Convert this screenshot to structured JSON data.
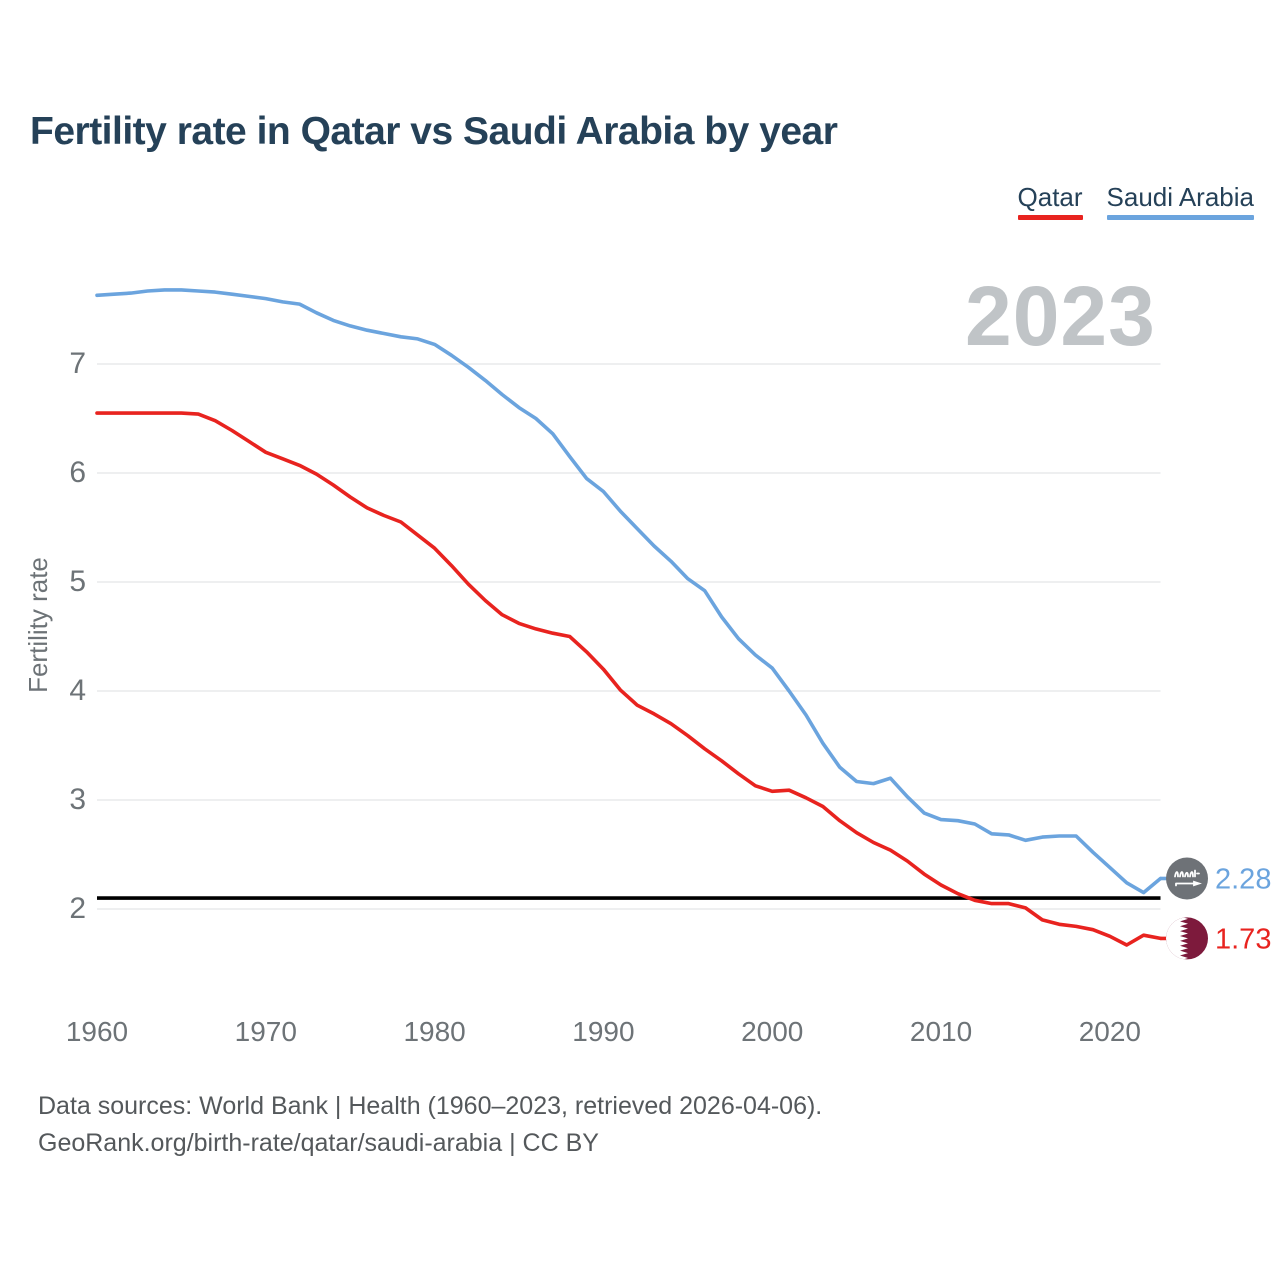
{
  "header": {
    "title": "Fertility rate in Qatar vs Saudi Arabia by year"
  },
  "legend": {
    "items": [
      {
        "label": "Qatar",
        "color": "#e8231f"
      },
      {
        "label": "Saudi Arabia",
        "color": "#6ba4de"
      }
    ]
  },
  "watermark": "2023",
  "axes": {
    "y_label": "Fertility rate",
    "y_ticks": [
      2,
      3,
      4,
      5,
      6,
      7
    ],
    "x_ticks": [
      1960,
      1970,
      1980,
      1990,
      2000,
      2010,
      2020
    ],
    "tick_color": "#6d7377",
    "gridline_color": "#e8eaeb"
  },
  "reference_line": {
    "value": 2.1,
    "color": "#000000"
  },
  "end_labels": [
    {
      "series": "Saudi Arabia",
      "text": "2.28",
      "icon": "saudi-arabia-flag",
      "color": "#6ba4de"
    },
    {
      "series": "Qatar",
      "text": "1.73",
      "icon": "qatar-flag",
      "color": "#e8231f"
    }
  ],
  "flag_colors": {
    "saudi_circle": "#6e7277",
    "qatar_maroon": "#7d1a3c",
    "white": "#ffffff"
  },
  "footer": {
    "line1": "Data sources: World Bank | Health (1960–2023, retrieved 2026-04-06).",
    "line2": "GeoRank.org/birth-rate/qatar/saudi-arabia | CC BY"
  },
  "chart_data": {
    "type": "line",
    "title": "Fertility rate in Qatar vs Saudi Arabia by year",
    "xlabel": "",
    "ylabel": "Fertility rate",
    "x": [
      1960,
      1961,
      1962,
      1963,
      1964,
      1965,
      1966,
      1967,
      1968,
      1969,
      1970,
      1971,
      1972,
      1973,
      1974,
      1975,
      1976,
      1977,
      1978,
      1979,
      1980,
      1981,
      1982,
      1983,
      1984,
      1985,
      1986,
      1987,
      1988,
      1989,
      1990,
      1991,
      1992,
      1993,
      1994,
      1995,
      1996,
      1997,
      1998,
      1999,
      2000,
      2001,
      2002,
      2003,
      2004,
      2005,
      2006,
      2007,
      2008,
      2009,
      2010,
      2011,
      2012,
      2013,
      2014,
      2015,
      2016,
      2017,
      2018,
      2019,
      2020,
      2021,
      2022,
      2023
    ],
    "series": [
      {
        "name": "Qatar",
        "color": "#e8231f",
        "values": [
          6.55,
          6.55,
          6.55,
          6.55,
          6.55,
          6.55,
          6.54,
          6.48,
          6.39,
          6.29,
          6.19,
          6.13,
          6.07,
          5.99,
          5.89,
          5.78,
          5.68,
          5.61,
          5.55,
          5.43,
          5.31,
          5.15,
          4.98,
          4.83,
          4.7,
          4.62,
          4.57,
          4.53,
          4.5,
          4.36,
          4.2,
          4.01,
          3.87,
          3.79,
          3.7,
          3.59,
          3.47,
          3.36,
          3.24,
          3.13,
          3.08,
          3.09,
          3.02,
          2.94,
          2.81,
          2.7,
          2.61,
          2.54,
          2.44,
          2.32,
          2.22,
          2.14,
          2.08,
          2.05,
          2.05,
          2.01,
          1.9,
          1.86,
          1.84,
          1.81,
          1.75,
          1.67,
          1.76,
          1.73
        ]
      },
      {
        "name": "Saudi Arabia",
        "color": "#6ba4de",
        "values": [
          7.63,
          7.64,
          7.65,
          7.67,
          7.68,
          7.68,
          7.67,
          7.66,
          7.64,
          7.62,
          7.6,
          7.57,
          7.55,
          7.47,
          7.4,
          7.35,
          7.31,
          7.28,
          7.25,
          7.23,
          7.18,
          7.08,
          6.97,
          6.85,
          6.72,
          6.6,
          6.5,
          6.36,
          6.15,
          5.95,
          5.83,
          5.65,
          5.49,
          5.33,
          5.19,
          5.03,
          4.92,
          4.68,
          4.48,
          4.33,
          4.21,
          4.0,
          3.78,
          3.52,
          3.3,
          3.17,
          3.15,
          3.2,
          3.03,
          2.88,
          2.82,
          2.81,
          2.78,
          2.69,
          2.68,
          2.63,
          2.66,
          2.67,
          2.67,
          2.52,
          2.38,
          2.24,
          2.15,
          2.28
        ]
      }
    ],
    "ylim": [
      1.4,
      7.9
    ],
    "xlim": [
      1960,
      2023
    ],
    "grid": "horizontal-only",
    "legend_position": "top-right",
    "reference_line": 2.1,
    "watermark": "2023",
    "end_value_labels": {
      "Saudi Arabia": "2.28",
      "Qatar": "1.73"
    }
  }
}
